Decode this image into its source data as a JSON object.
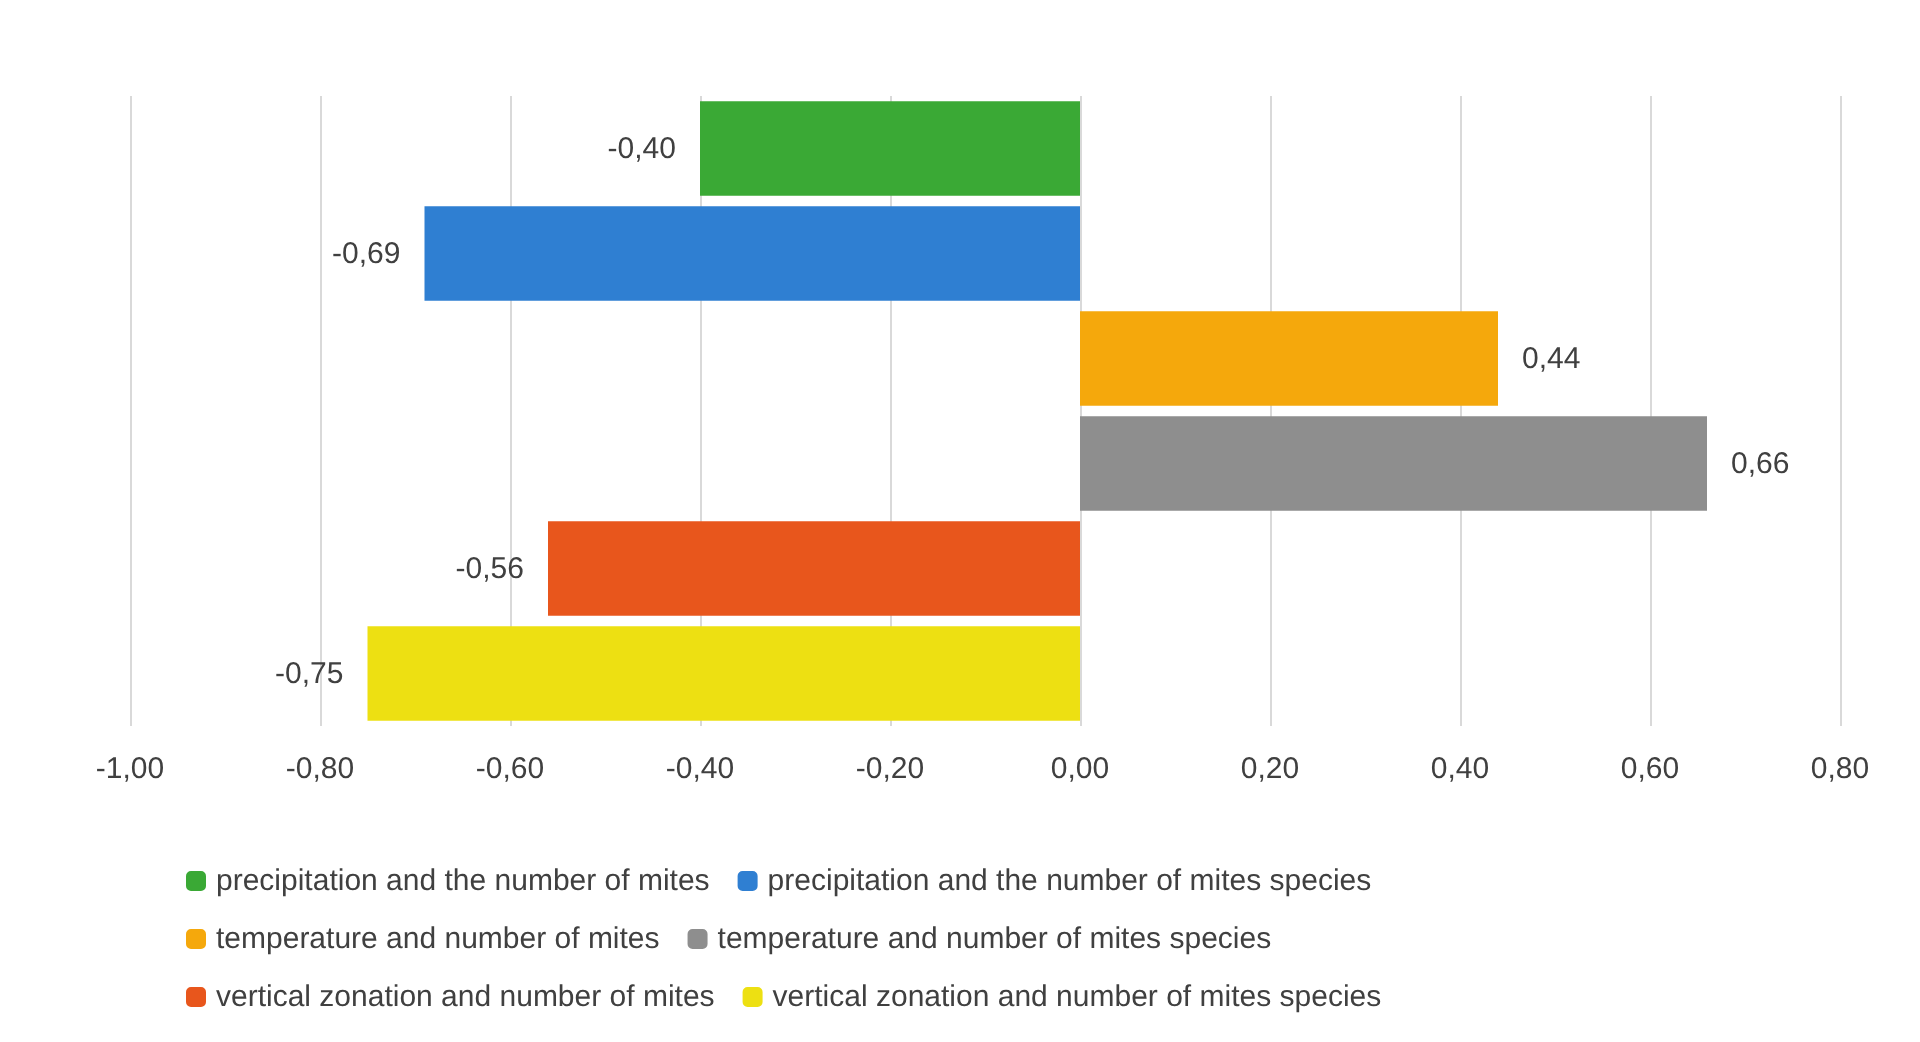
{
  "chart_data": {
    "type": "bar",
    "orientation": "horizontal",
    "categories": [
      null,
      null,
      null,
      null,
      null,
      null
    ],
    "series": [
      {
        "name": "precipitation and the number of mites",
        "color": "#3aa935",
        "values": [
          -0.4,
          null,
          null,
          null,
          null,
          null
        ],
        "value_labels": [
          "-0,40",
          null,
          null,
          null,
          null,
          null
        ]
      },
      {
        "name": "precipitation and the number of mites species",
        "color": "#2f7fd2",
        "values": [
          null,
          -0.69,
          null,
          null,
          null,
          null
        ],
        "value_labels": [
          null,
          "-0,69",
          null,
          null,
          null,
          null
        ]
      },
      {
        "name": "temperature and number of mites",
        "color": "#f5a80c",
        "values": [
          null,
          null,
          0.44,
          null,
          null,
          null
        ],
        "value_labels": [
          null,
          null,
          "0,44",
          null,
          null,
          null
        ]
      },
      {
        "name": "temperature and number of mites species",
        "color": "#8e8e8e",
        "values": [
          null,
          null,
          null,
          0.66,
          null,
          null
        ],
        "value_labels": [
          null,
          null,
          null,
          "0,66",
          null,
          null
        ]
      },
      {
        "name": "vertical zonation and number of mites",
        "color": "#e8561c",
        "values": [
          null,
          null,
          null,
          null,
          -0.56,
          null
        ],
        "value_labels": [
          null,
          null,
          null,
          null,
          "-0,56",
          null
        ]
      },
      {
        "name": "vertical zonation and number of mites species",
        "color": "#ede012",
        "values": [
          null,
          null,
          null,
          null,
          null,
          -0.75
        ],
        "value_labels": [
          null,
          null,
          null,
          null,
          null,
          "-0,75"
        ]
      }
    ],
    "xlim": [
      -1,
      0.8
    ],
    "xticks": [
      {
        "value": -1,
        "label": "-1,00"
      },
      {
        "value": -0.8,
        "label": "-0,80"
      },
      {
        "value": -0.6,
        "label": "-0,60"
      },
      {
        "value": -0.4,
        "label": "-0,40"
      },
      {
        "value": -0.2,
        "label": "-0,20"
      },
      {
        "value": 0,
        "label": "0,00"
      },
      {
        "value": 0.2,
        "label": "0,20"
      },
      {
        "value": 0.4,
        "label": "0,40"
      },
      {
        "value": 0.6,
        "label": "0,60"
      },
      {
        "value": 0.8,
        "label": "0,80"
      }
    ],
    "grid": "x",
    "legend": "bottom"
  }
}
